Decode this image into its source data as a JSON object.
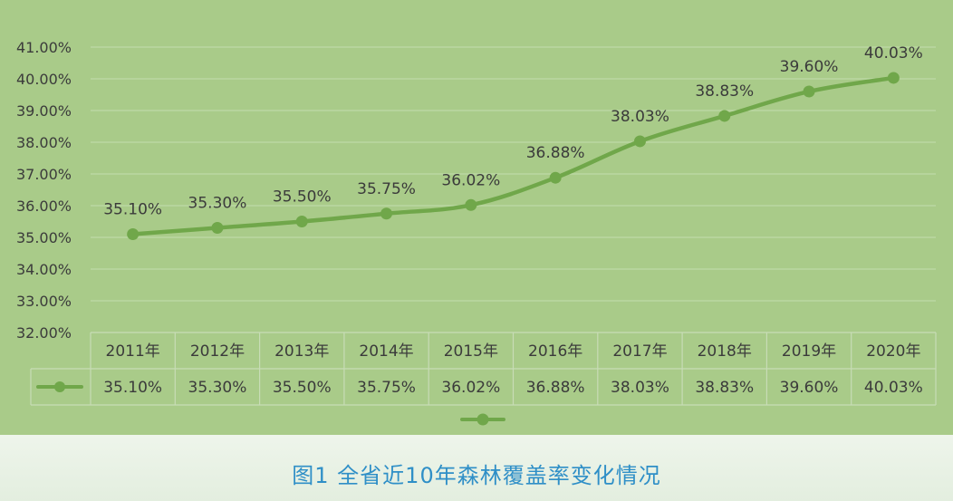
{
  "caption": "图1  全省近10年森林覆盖率变化情况",
  "colors": {
    "background": "#a9cb89",
    "line": "#70a74a",
    "grid": "#c4dcb0",
    "caption": "#2f8fc7"
  },
  "chart_data": {
    "type": "line",
    "categories": [
      "2011年",
      "2012年",
      "2013年",
      "2014年",
      "2015年",
      "2016年",
      "2017年",
      "2018年",
      "2019年",
      "2020年"
    ],
    "series": [
      {
        "values": [
          35.1,
          35.3,
          35.5,
          35.75,
          36.02,
          36.88,
          38.03,
          38.83,
          39.6,
          40.03
        ]
      }
    ],
    "data_labels": [
      "35.10%",
      "35.30%",
      "35.50%",
      "35.75%",
      "36.02%",
      "36.88%",
      "38.03%",
      "38.83%",
      "39.60%",
      "40.03%"
    ],
    "yticks": [
      "32.00%",
      "33.00%",
      "34.00%",
      "35.00%",
      "36.00%",
      "37.00%",
      "38.00%",
      "39.00%",
      "40.00%",
      "41.00%"
    ],
    "ylim": [
      32,
      41
    ],
    "grid": true,
    "legend": "bottom",
    "data_table": true
  }
}
